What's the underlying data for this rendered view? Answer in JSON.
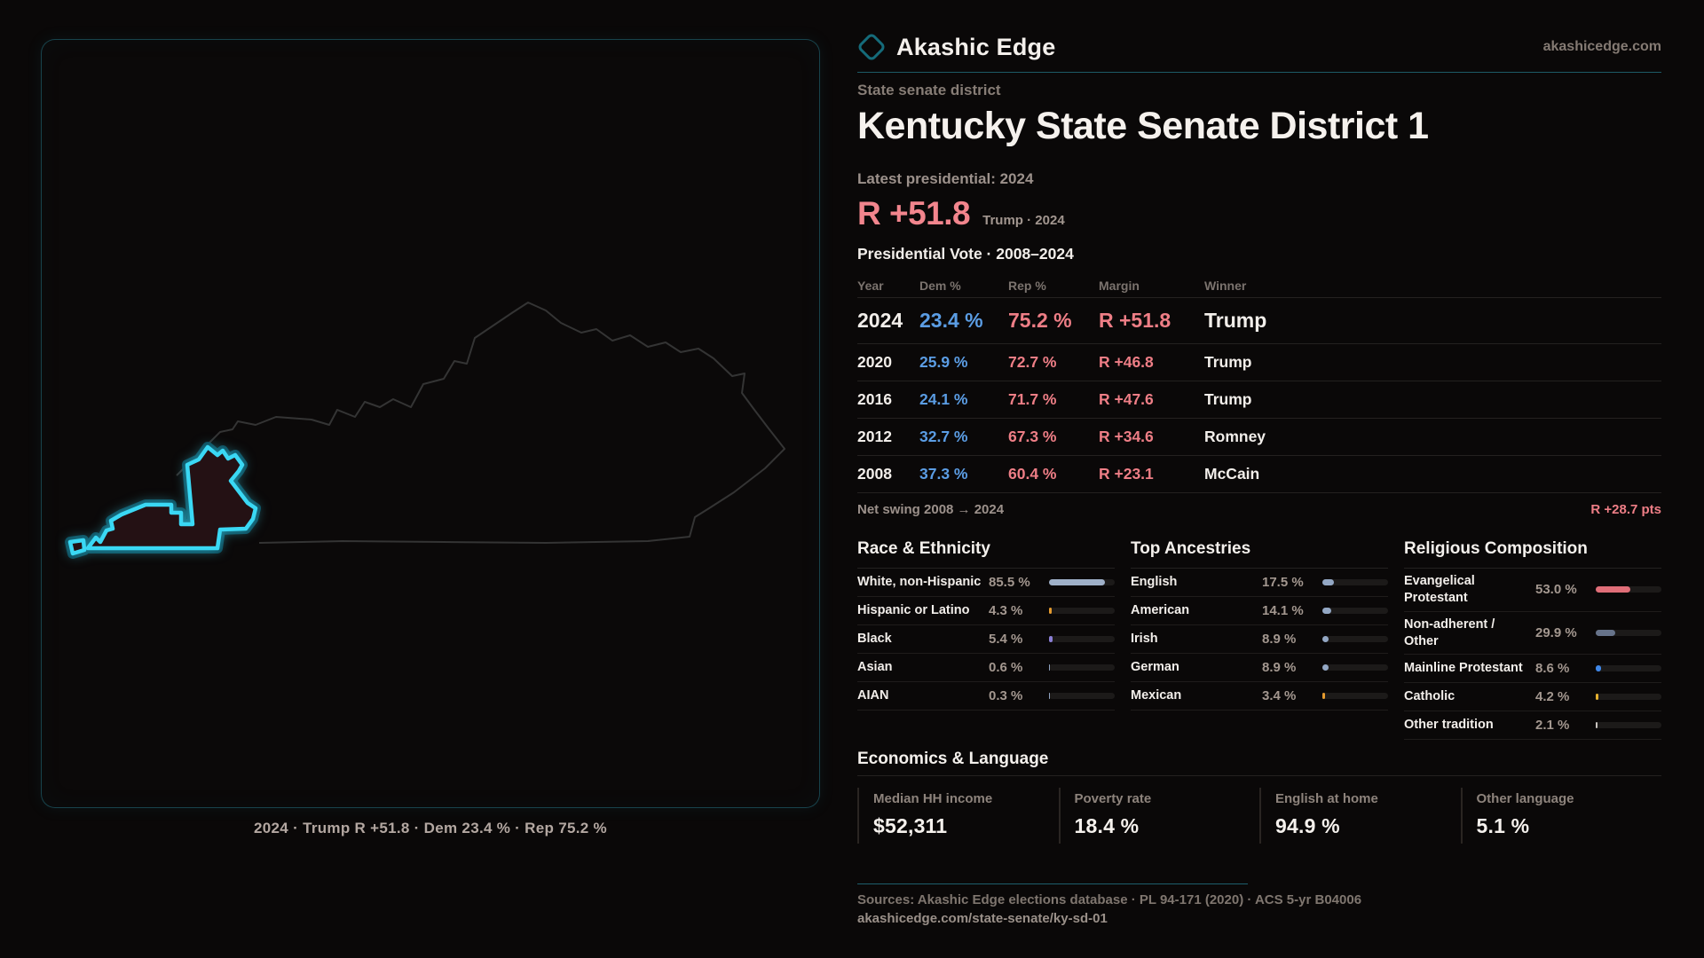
{
  "brand": {
    "name": "Akashic Edge",
    "site": "akashicedge.com"
  },
  "header": {
    "kicker": "State senate district",
    "title": "Kentucky State Senate District 1",
    "latest_label": "Latest presidential: 2024",
    "margin_value": "R +51.8",
    "margin_note": "Trump · 2024"
  },
  "map_panel": {
    "caption": "2024 · Trump R +51.8 · Dem 23.4 % · Rep 75.2 %",
    "district_color": "#3ad8f4",
    "state_outline_color": "#343434"
  },
  "vote_table": {
    "title": "Presidential Vote · 2008–2024",
    "columns": [
      "Year",
      "Dem %",
      "Rep %",
      "Margin",
      "Winner"
    ],
    "rows": [
      {
        "year": "2024",
        "dem": "23.4 %",
        "rep": "75.2 %",
        "margin": "R +51.8",
        "winner": "Trump"
      },
      {
        "year": "2020",
        "dem": "25.9 %",
        "rep": "72.7 %",
        "margin": "R +46.8",
        "winner": "Trump"
      },
      {
        "year": "2016",
        "dem": "24.1 %",
        "rep": "71.7 %",
        "margin": "R +47.6",
        "winner": "Trump"
      },
      {
        "year": "2012",
        "dem": "32.7 %",
        "rep": "67.3 %",
        "margin": "R +34.6",
        "winner": "Romney"
      },
      {
        "year": "2008",
        "dem": "37.3 %",
        "rep": "60.4 %",
        "margin": "R +23.1",
        "winner": "McCain"
      }
    ],
    "net_swing_label": "Net swing 2008 → 2024",
    "net_swing_value": "R +28.7 pts"
  },
  "race": {
    "title": "Race & Ethnicity",
    "rows": [
      {
        "label": "White, non-Hispanic",
        "value": "85.5 %",
        "pct": 85.5,
        "color": "#9fb0c8"
      },
      {
        "label": "Hispanic or Latino",
        "value": "4.3 %",
        "pct": 4.3,
        "color": "#e59b2e"
      },
      {
        "label": "Black",
        "value": "5.4 %",
        "pct": 5.4,
        "color": "#8b7fd6"
      },
      {
        "label": "Asian",
        "value": "0.6 %",
        "pct": 0.6,
        "color": "#8fa3c0"
      },
      {
        "label": "AIAN",
        "value": "0.3 %",
        "pct": 0.3,
        "color": "#8fa3c0"
      }
    ]
  },
  "ancestries": {
    "title": "Top Ancestries",
    "rows": [
      {
        "label": "English",
        "value": "17.5 %",
        "pct": 17.5,
        "color": "#93a7c4"
      },
      {
        "label": "American",
        "value": "14.1 %",
        "pct": 14.1,
        "color": "#93a7c4"
      },
      {
        "label": "Irish",
        "value": "8.9 %",
        "pct": 8.9,
        "color": "#93a7c4"
      },
      {
        "label": "German",
        "value": "8.9 %",
        "pct": 8.9,
        "color": "#93a7c4"
      },
      {
        "label": "Mexican",
        "value": "3.4 %",
        "pct": 3.4,
        "color": "#e59b2e"
      }
    ]
  },
  "religion": {
    "title": "Religious Composition",
    "rows": [
      {
        "label": "Evangelical Protestant",
        "value": "53.0 %",
        "pct": 53.0,
        "color": "#e06e78"
      },
      {
        "label": "Non-adherent / Other",
        "value": "29.9 %",
        "pct": 29.9,
        "color": "#67738a"
      },
      {
        "label": "Mainline Protestant",
        "value": "8.6 %",
        "pct": 8.6,
        "color": "#3f87e8"
      },
      {
        "label": "Catholic",
        "value": "4.2 %",
        "pct": 4.2,
        "color": "#e5b02e"
      },
      {
        "label": "Other tradition",
        "value": "2.1 %",
        "pct": 2.1,
        "color": "#c9c4c0"
      }
    ]
  },
  "economics": {
    "title": "Economics & Language",
    "stats": [
      {
        "label": "Median HH income",
        "value": "$52,311"
      },
      {
        "label": "Poverty rate",
        "value": "18.4 %"
      },
      {
        "label": "English at home",
        "value": "94.9 %"
      },
      {
        "label": "Other language",
        "value": "5.1 %"
      }
    ]
  },
  "footer": {
    "sources": "Sources: Akashic Edge elections database · PL 94-171 (2020) · ACS 5-yr B04006",
    "url": "akashicedge.com/state-senate/ky-sd-01"
  },
  "chart_data": [
    {
      "type": "table",
      "title": "Presidential Vote · 2008–2024",
      "columns": [
        "Year",
        "Dem %",
        "Rep %",
        "Margin",
        "Winner"
      ],
      "rows": [
        [
          "2024",
          23.4,
          75.2,
          "R +51.8",
          "Trump"
        ],
        [
          "2020",
          25.9,
          72.7,
          "R +46.8",
          "Trump"
        ],
        [
          "2016",
          24.1,
          71.7,
          "R +47.6",
          "Trump"
        ],
        [
          "2012",
          32.7,
          67.3,
          "R +34.6",
          "Romney"
        ],
        [
          "2008",
          37.3,
          60.4,
          "R +23.1",
          "McCain"
        ]
      ]
    },
    {
      "type": "bar",
      "title": "Race & Ethnicity",
      "categories": [
        "White, non-Hispanic",
        "Hispanic or Latino",
        "Black",
        "Asian",
        "AIAN"
      ],
      "values": [
        85.5,
        4.3,
        5.4,
        0.6,
        0.3
      ],
      "xlabel": "",
      "ylabel": "%",
      "ylim": [
        0,
        100
      ]
    },
    {
      "type": "bar",
      "title": "Top Ancestries",
      "categories": [
        "English",
        "American",
        "Irish",
        "German",
        "Mexican"
      ],
      "values": [
        17.5,
        14.1,
        8.9,
        8.9,
        3.4
      ],
      "xlabel": "",
      "ylabel": "%",
      "ylim": [
        0,
        100
      ]
    },
    {
      "type": "bar",
      "title": "Religious Composition",
      "categories": [
        "Evangelical Protestant",
        "Non-adherent / Other",
        "Mainline Protestant",
        "Catholic",
        "Other tradition"
      ],
      "values": [
        53.0,
        29.9,
        8.6,
        4.2,
        2.1
      ],
      "xlabel": "",
      "ylabel": "%",
      "ylim": [
        0,
        100
      ]
    }
  ]
}
